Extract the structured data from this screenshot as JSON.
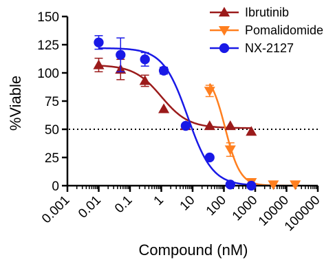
{
  "chart_data": {
    "type": "scatter",
    "xlabel": "Compound (nM)",
    "ylabel": "%Viable",
    "xscale": "log",
    "xlim": [
      0.001,
      100000
    ],
    "ylim": [
      0,
      150
    ],
    "xtick_labels": [
      "0.001",
      "0.01",
      "0.1",
      "1",
      "10",
      "100",
      "1000",
      "10000",
      "100000"
    ],
    "xtick_values": [
      0.001,
      0.01,
      0.1,
      1,
      10,
      100,
      1000,
      10000,
      100000
    ],
    "ytick_labels": [
      "0",
      "25",
      "50",
      "75",
      "100",
      "125",
      "150"
    ],
    "ytick_values": [
      0,
      25,
      50,
      75,
      100,
      125,
      150
    ],
    "reference_line": {
      "y": 50,
      "style": "dotted"
    },
    "legend_position": "top-right",
    "series": [
      {
        "name": "Ibrutinib",
        "color": "#9b1b1b",
        "marker": "triangle-up",
        "points": [
          {
            "x": 0.01,
            "y": 107,
            "err": 6
          },
          {
            "x": 0.05,
            "y": 103,
            "err": 9
          },
          {
            "x": 0.3,
            "y": 93,
            "err": 5
          },
          {
            "x": 1.2,
            "y": 68,
            "err": 0
          },
          {
            "x": 6,
            "y": 53,
            "err": 2
          },
          {
            "x": 35,
            "y": 53,
            "err": 0
          },
          {
            "x": 160,
            "y": 53,
            "err": 0
          },
          {
            "x": 750,
            "y": 48,
            "err": 0
          }
        ],
        "fit": {
          "top": 107,
          "bottom": 51,
          "ic50": 1.0,
          "hill": 1.0
        }
      },
      {
        "name": "Pomalidomide",
        "color": "#ff7f1f",
        "marker": "triangle-down",
        "points": [
          {
            "x": 35,
            "y": 84,
            "err": 5
          },
          {
            "x": 160,
            "y": 32,
            "err": 6
          },
          {
            "x": 750,
            "y": 3,
            "err": 0
          },
          {
            "x": 3800,
            "y": 1,
            "err": 0
          },
          {
            "x": 19000,
            "y": 1,
            "err": 0
          }
        ],
        "fit": {
          "top": 102,
          "bottom": 0,
          "ic50": 110,
          "hill": 1.8
        }
      },
      {
        "name": "NX-2127",
        "color": "#1919e6",
        "marker": "circle",
        "points": [
          {
            "x": 0.01,
            "y": 127,
            "err": 6
          },
          {
            "x": 0.05,
            "y": 116,
            "err": 15
          },
          {
            "x": 0.3,
            "y": 112,
            "err": 6
          },
          {
            "x": 1.2,
            "y": 102,
            "err": 3
          },
          {
            "x": 6,
            "y": 53,
            "err": 0
          },
          {
            "x": 35,
            "y": 25,
            "err": 0
          },
          {
            "x": 160,
            "y": 1,
            "err": 0
          },
          {
            "x": 750,
            "y": 0,
            "err": 0
          }
        ],
        "fit": {
          "top": 122,
          "bottom": 0,
          "ic50": 7,
          "hill": 1.1
        }
      }
    ]
  }
}
